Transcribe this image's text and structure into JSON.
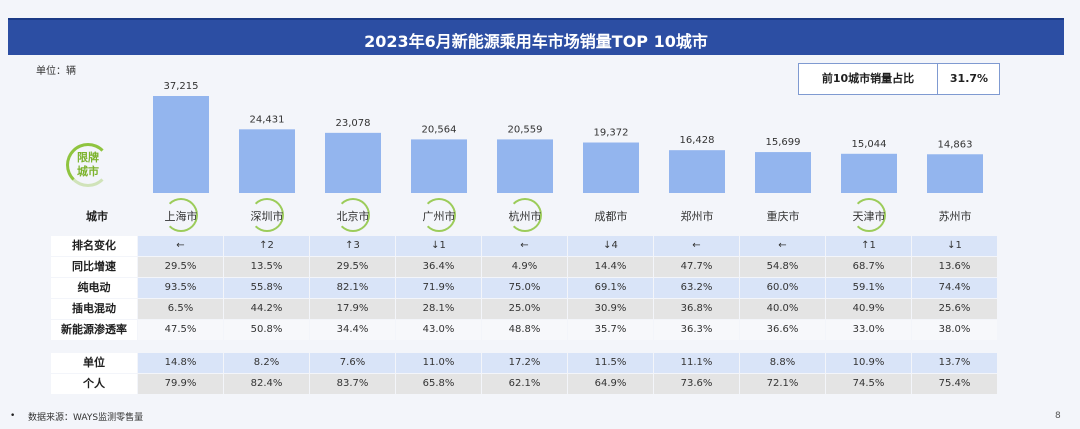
{
  "title": "2023年6月新能源乘用车市场销量TOP 10城市",
  "unit_label": "单位：辆",
  "share": {
    "label": "前10城市销量占比",
    "value": "31.7%"
  },
  "badge": {
    "line1": "限牌",
    "line2": "城市"
  },
  "city_row_label": "城市",
  "highlighted_cities": [
    "上海市",
    "深圳市",
    "北京市",
    "广州市",
    "杭州市",
    "天津市"
  ],
  "chart_data": {
    "type": "bar",
    "categories": [
      "上海市",
      "深圳市",
      "北京市",
      "广州市",
      "杭州市",
      "成都市",
      "郑州市",
      "重庆市",
      "天津市",
      "苏州市"
    ],
    "values": [
      37215,
      24431,
      23078,
      20564,
      20559,
      19372,
      16428,
      15699,
      15044,
      14863
    ],
    "value_labels": [
      "37,215",
      "24,431",
      "23,078",
      "20,564",
      "20,559",
      "19,372",
      "16,428",
      "15,699",
      "15,044",
      "14,863"
    ],
    "title": "2023年6月新能源乘用车市场销量TOP 10城市",
    "ylabel": "单位：辆",
    "ylim": [
      0,
      37215
    ],
    "colors": {
      "bar": "#93b5ee"
    }
  },
  "table": {
    "rows": [
      {
        "label": "排名变化",
        "shade": "blue",
        "cells": [
          "←",
          "↑2",
          "↑3",
          "↓1",
          "←",
          "↓4",
          "←",
          "←",
          "↑1",
          "↓1"
        ]
      },
      {
        "label": "同比增速",
        "shade": "grey",
        "cells": [
          "29.5%",
          "13.5%",
          "29.5%",
          "36.4%",
          "4.9%",
          "14.4%",
          "47.7%",
          "54.8%",
          "68.7%",
          "13.6%"
        ]
      },
      {
        "label": "纯电动",
        "shade": "blue",
        "cells": [
          "93.5%",
          "55.8%",
          "82.1%",
          "71.9%",
          "75.0%",
          "69.1%",
          "63.2%",
          "60.0%",
          "59.1%",
          "74.4%"
        ]
      },
      {
        "label": "插电混动",
        "shade": "grey",
        "cells": [
          "6.5%",
          "44.2%",
          "17.9%",
          "28.1%",
          "25.0%",
          "30.9%",
          "36.8%",
          "40.0%",
          "40.9%",
          "25.6%"
        ]
      },
      {
        "label": "新能源渗透率",
        "shade": "white",
        "cells": [
          "47.5%",
          "50.8%",
          "34.4%",
          "43.0%",
          "48.8%",
          "35.7%",
          "36.3%",
          "36.6%",
          "33.0%",
          "38.0%"
        ]
      },
      {
        "label": "单位",
        "shade": "blue",
        "cells": [
          "14.8%",
          "8.2%",
          "7.6%",
          "11.0%",
          "17.2%",
          "11.5%",
          "11.1%",
          "8.8%",
          "10.9%",
          "13.7%"
        ]
      },
      {
        "label": "个人",
        "shade": "grey",
        "cells": [
          "79.9%",
          "82.4%",
          "83.7%",
          "65.8%",
          "62.1%",
          "64.9%",
          "73.6%",
          "72.1%",
          "74.5%",
          "75.4%"
        ]
      }
    ]
  },
  "footer": {
    "bullet": "•",
    "source": "数据来源：WAYS监测零售量",
    "page": "8"
  }
}
